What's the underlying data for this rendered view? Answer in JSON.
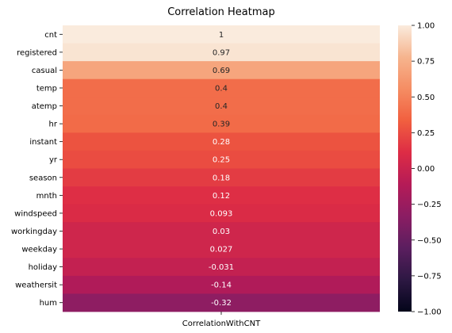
{
  "chart_data": {
    "type": "heatmap",
    "title": "Correlation Heatmap",
    "column_label": "CorrelationWithCNT",
    "rows": [
      "cnt",
      "registered",
      "casual",
      "temp",
      "atemp",
      "hr",
      "instant",
      "yr",
      "season",
      "mnth",
      "windspeed",
      "workingday",
      "weekday",
      "holiday",
      "weathersit",
      "hum"
    ],
    "values": [
      1,
      0.97,
      0.69,
      0.4,
      0.4,
      0.39,
      0.28,
      0.25,
      0.18,
      0.12,
      0.093,
      0.03,
      0.027,
      -0.031,
      -0.14,
      -0.32
    ],
    "value_labels": [
      "1",
      "0.97",
      "0.69",
      "0.4",
      "0.4",
      "0.39",
      "0.28",
      "0.25",
      "0.18",
      "0.12",
      "0.093",
      "0.03",
      "0.027",
      "-0.031",
      "-0.14",
      "-0.32"
    ],
    "colorbar": {
      "range": [
        -1,
        1
      ],
      "ticks": [
        "1.00",
        "0.75",
        "0.50",
        "0.25",
        "0.00",
        "−0.25",
        "−0.50",
        "−0.75",
        "−1.00"
      ],
      "tick_values": [
        1,
        0.75,
        0.5,
        0.25,
        0,
        -0.25,
        -0.5,
        -0.75,
        -1
      ],
      "colormap": "rocket",
      "stops": [
        "#03051a",
        "#2d1843",
        "#5b1e5f",
        "#8b1d63",
        "#b51b57",
        "#dd2c45",
        "#f15f3f",
        "#f58d63",
        "#f6b48e",
        "#faebdd"
      ]
    },
    "grid": false
  }
}
